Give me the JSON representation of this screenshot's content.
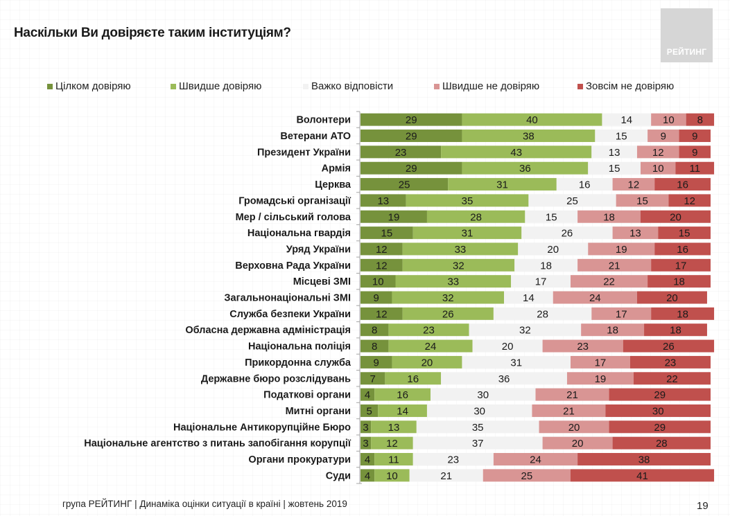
{
  "header": {
    "title": "Наскільки Ви довіряєте таким інституціям?",
    "logo_text": "РЕЙТИНГ"
  },
  "footer": {
    "text": "група РЕЙТИНГ |  Динаміка оцінки ситуації в країні  |  жовтень  2019",
    "page_number": "19"
  },
  "chart_data": {
    "type": "bar",
    "orientation": "horizontal",
    "stacked": true,
    "normalized_percent": true,
    "title": "Наскільки Ви довіряєте таким інституціям?",
    "xlabel": "",
    "ylabel": "",
    "xlim": [
      0,
      100
    ],
    "grid": false,
    "legend_position": "top",
    "categories": [
      "Волонтери",
      "Ветерани АТО",
      "Президент України",
      "Армія",
      "Церква",
      "Громадські організації",
      "Мер / сільський голова",
      "Національна гвардія",
      "Уряд України",
      "Верховна Рада України",
      "Місцеві ЗМІ",
      "Загальнонаціональні ЗМІ",
      "Служба безпеки України",
      "Обласна державна адміністрація",
      "Національна поліція",
      "Прикордонна служба",
      "Державне бюро розслідувань",
      "Податкові органи",
      "Митні органи",
      "Національне Антикорупційне Бюро",
      "Національне агентство з питань запобігання корупції",
      "Органи прокуратури",
      "Суди"
    ],
    "series": [
      {
        "name": "Цілком довіряю",
        "color": "#76923c",
        "values": [
          29,
          29,
          23,
          29,
          25,
          13,
          19,
          15,
          12,
          12,
          10,
          9,
          12,
          8,
          8,
          9,
          7,
          4,
          5,
          3,
          3,
          4,
          4
        ]
      },
      {
        "name": "Швидше довіряю",
        "color": "#9bbb59",
        "values": [
          40,
          38,
          43,
          36,
          31,
          35,
          28,
          31,
          33,
          32,
          33,
          32,
          26,
          23,
          24,
          20,
          16,
          16,
          14,
          13,
          12,
          11,
          10
        ]
      },
      {
        "name": "Важко відповісти",
        "color": "#f2f2f2",
        "values": [
          14,
          15,
          13,
          15,
          16,
          25,
          15,
          26,
          20,
          18,
          17,
          14,
          28,
          32,
          20,
          31,
          36,
          30,
          30,
          35,
          37,
          23,
          21
        ]
      },
      {
        "name": "Швидше не довіряю",
        "color": "#d99594",
        "values": [
          10,
          9,
          12,
          10,
          12,
          15,
          18,
          13,
          19,
          21,
          22,
          24,
          17,
          18,
          23,
          17,
          19,
          21,
          21,
          20,
          20,
          24,
          25
        ]
      },
      {
        "name": "Зовсім не довіряю",
        "color": "#c0504d",
        "values": [
          8,
          9,
          9,
          11,
          16,
          12,
          20,
          15,
          16,
          17,
          18,
          20,
          18,
          18,
          26,
          23,
          22,
          29,
          30,
          29,
          28,
          38,
          41
        ]
      }
    ]
  }
}
